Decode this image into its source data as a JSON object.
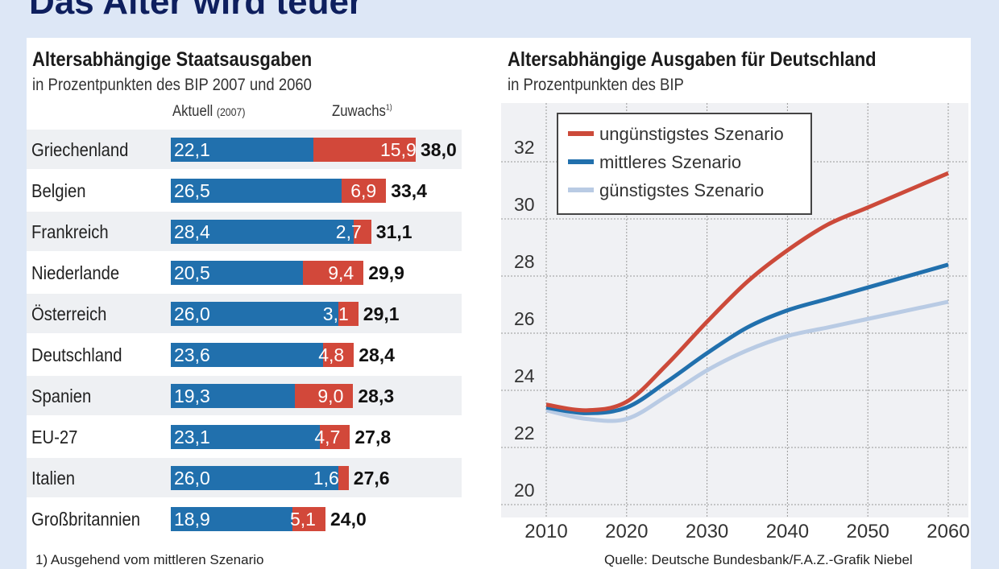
{
  "title": "Das Alter wird teuer",
  "chart_data": [
    {
      "type": "bar",
      "stacked": true,
      "title": "Altersabhängige Staatsausgaben",
      "subtitle": "in Prozentpunkten des BIP 2007 und 2060",
      "series_labels": {
        "current": "Aktuell",
        "current_year": "(2007)",
        "increase": "Zuwachs",
        "increase_note": "1)"
      },
      "categories": [
        "Griechenland",
        "Belgien",
        "Frankreich",
        "Niederlande",
        "Österreich",
        "Deutschland",
        "Spanien",
        "EU-27",
        "Italien",
        "Großbritannien"
      ],
      "current": [
        "22,1",
        "26,5",
        "28,4",
        "20,5",
        "26,0",
        "23,6",
        "19,3",
        "23,1",
        "26,0",
        "18,9"
      ],
      "increase": [
        "15,9",
        "6,9",
        "2,7",
        "9,4",
        "3,1",
        "4,8",
        "9,0",
        "4,7",
        "1,6",
        "5,1"
      ],
      "total": [
        "38,0",
        "33,4",
        "31,1",
        "29,9",
        "29,1",
        "28,4",
        "28,3",
        "27,8",
        "27,6",
        "24,0"
      ],
      "colors": {
        "current": "#2170ad",
        "increase": "#d2483a"
      },
      "footnote": "1) Ausgehend vom mittleren Szenario"
    },
    {
      "type": "line",
      "title": "Altersabhängige Ausgaben für Deutschland",
      "subtitle": "in Prozentpunkten des BIP",
      "x": [
        2010,
        2015,
        2020,
        2025,
        2030,
        2035,
        2040,
        2045,
        2050,
        2055,
        2060
      ],
      "xticks": [
        "2010",
        "2020",
        "2030",
        "2040",
        "2050",
        "2060"
      ],
      "yticks": [
        "20",
        "22",
        "24",
        "26",
        "28",
        "30",
        "32"
      ],
      "ylim": [
        20,
        33.5
      ],
      "grid": true,
      "legend": "top-left",
      "series": [
        {
          "name": "ungünstigstes Szenario",
          "color": "#cc4a3a",
          "values": [
            23.5,
            23.3,
            23.6,
            24.9,
            26.4,
            27.8,
            28.9,
            29.8,
            30.4,
            31.0,
            31.6
          ]
        },
        {
          "name": "mittleres Szenario",
          "color": "#2170ad",
          "values": [
            23.4,
            23.2,
            23.4,
            24.3,
            25.3,
            26.2,
            26.8,
            27.2,
            27.6,
            28.0,
            28.4
          ]
        },
        {
          "name": "günstigstes Szenario",
          "color": "#b9cbe4",
          "values": [
            23.3,
            23.0,
            23.0,
            23.8,
            24.7,
            25.4,
            25.9,
            26.2,
            26.5,
            26.8,
            27.1
          ]
        }
      ],
      "source": "Quelle: Deutsche Bundesbank/F.A.Z.-Grafik Niebel"
    }
  ]
}
